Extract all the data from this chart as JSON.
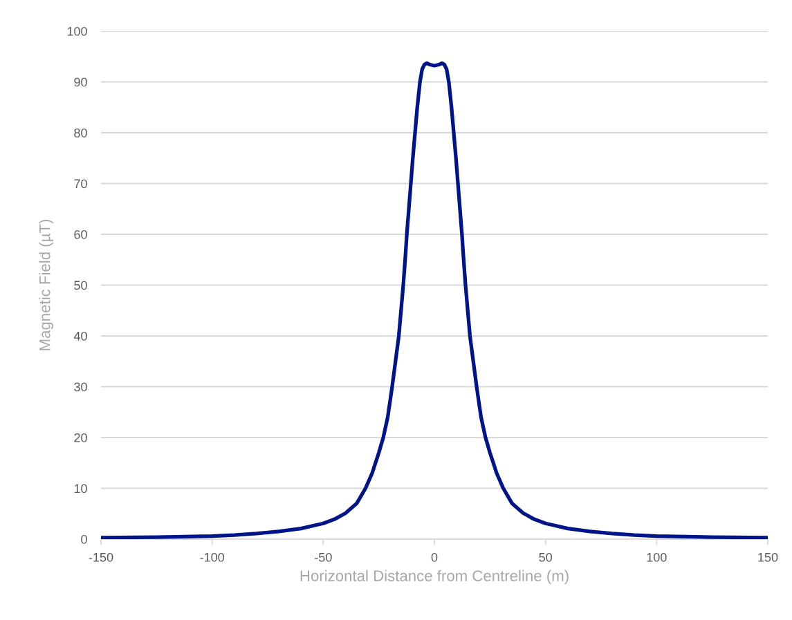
{
  "chart_data": {
    "type": "line",
    "xlabel": "Horizontal Distance from Centreline (m)",
    "ylabel": "Magnetic Field (µT)",
    "xlim": [
      -150,
      150
    ],
    "xticks": [
      -150,
      -100,
      -50,
      0,
      50,
      100,
      150
    ],
    "ylim": [
      0,
      100
    ],
    "yticks": [
      0,
      10,
      20,
      30,
      40,
      50,
      60,
      70,
      80,
      90,
      100
    ],
    "grid": "y",
    "marker": "none",
    "line_style": "solid",
    "series": [
      {
        "color": "#001489",
        "x": [
          -150,
          -125,
          -100,
          -90,
          -80,
          -70,
          -60,
          -50,
          -45,
          -40,
          -35,
          -31,
          -28,
          -25,
          -23,
          -21,
          -19,
          -17.5,
          -16,
          -15,
          -14,
          -13,
          -12.4,
          -11.5,
          -10.6,
          -9.7,
          -8.7,
          -7.7,
          -6.5,
          -5.5,
          -4.5,
          -3.4,
          -2,
          0,
          2,
          3.4,
          4.5,
          5.5,
          6.5,
          7.7,
          8.7,
          9.7,
          10.6,
          11.5,
          12.4,
          13,
          14,
          15,
          16,
          17.5,
          19,
          21,
          23,
          25,
          28,
          31,
          35,
          40,
          45,
          50,
          60,
          70,
          80,
          90,
          100,
          125,
          150
        ],
        "values": [
          0.3,
          0.4,
          0.6,
          0.8,
          1.1,
          1.5,
          2.1,
          3.1,
          3.9,
          5.1,
          7.0,
          10,
          13,
          17,
          20,
          24,
          30,
          35,
          40,
          45,
          50,
          56,
          60,
          65,
          70,
          75,
          80,
          85,
          90,
          92.5,
          93.4,
          93.7,
          93.4,
          93.2,
          93.4,
          93.7,
          93.4,
          92.5,
          90,
          85,
          80,
          75,
          70,
          65,
          60,
          56,
          50,
          45,
          40,
          35,
          30,
          24,
          20,
          17,
          13,
          10,
          7.0,
          5.1,
          3.9,
          3.1,
          2.1,
          1.5,
          1.1,
          0.8,
          0.6,
          0.4,
          0.3
        ]
      }
    ]
  }
}
